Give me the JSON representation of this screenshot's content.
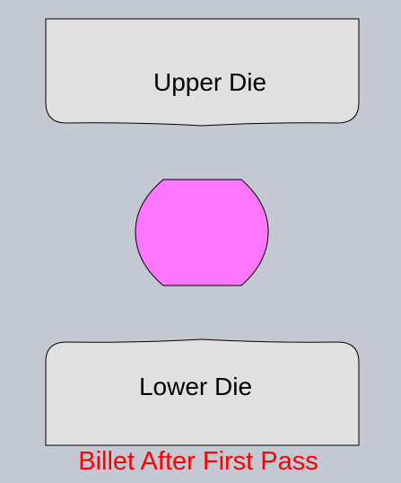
{
  "upper_die": {
    "label": "Upper Die",
    "fill": "#e0e0e0",
    "stroke": "#000000"
  },
  "billet": {
    "fill": "#ff77ff",
    "stroke": "#000000"
  },
  "lower_die": {
    "label": "Lower Die",
    "fill": "#e0e0e0",
    "stroke": "#000000"
  },
  "caption": {
    "text": "Billet After First Pass",
    "color": "#ff0000"
  },
  "background": "#c4c8d2"
}
